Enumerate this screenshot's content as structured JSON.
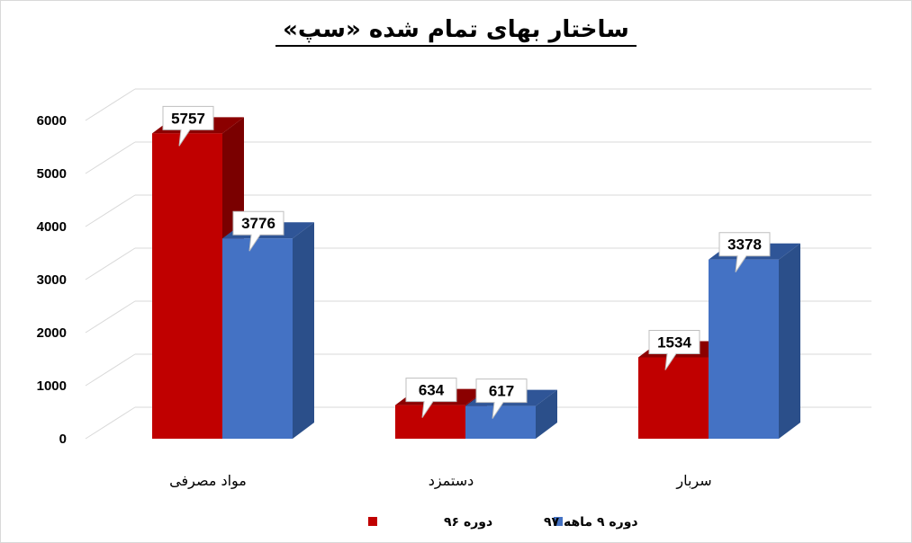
{
  "chart_data": {
    "type": "bar",
    "title": "ساختار بهای تمام شده «سپ»",
    "categories": [
      "مواد مصرفی",
      "دستمزد",
      "سربار"
    ],
    "series": [
      {
        "name": "دوره ۹۶",
        "color": "#c00000",
        "top_color": "#8b0000",
        "side_color": "#7a0000",
        "values": [
          5757,
          634,
          1534
        ]
      },
      {
        "name": "دوره ۹ ماهه ۹۷",
        "color": "#4472c4",
        "top_color": "#2f5597",
        "side_color": "#2b4f8a",
        "values": [
          3776,
          617,
          3378
        ]
      }
    ],
    "ylim": [
      0,
      6000
    ],
    "yticks": [
      "0",
      "1000",
      "2000",
      "3000",
      "4000",
      "5000",
      "6000"
    ],
    "grid": true,
    "legend_position": "bottom",
    "style": "3d-column"
  }
}
